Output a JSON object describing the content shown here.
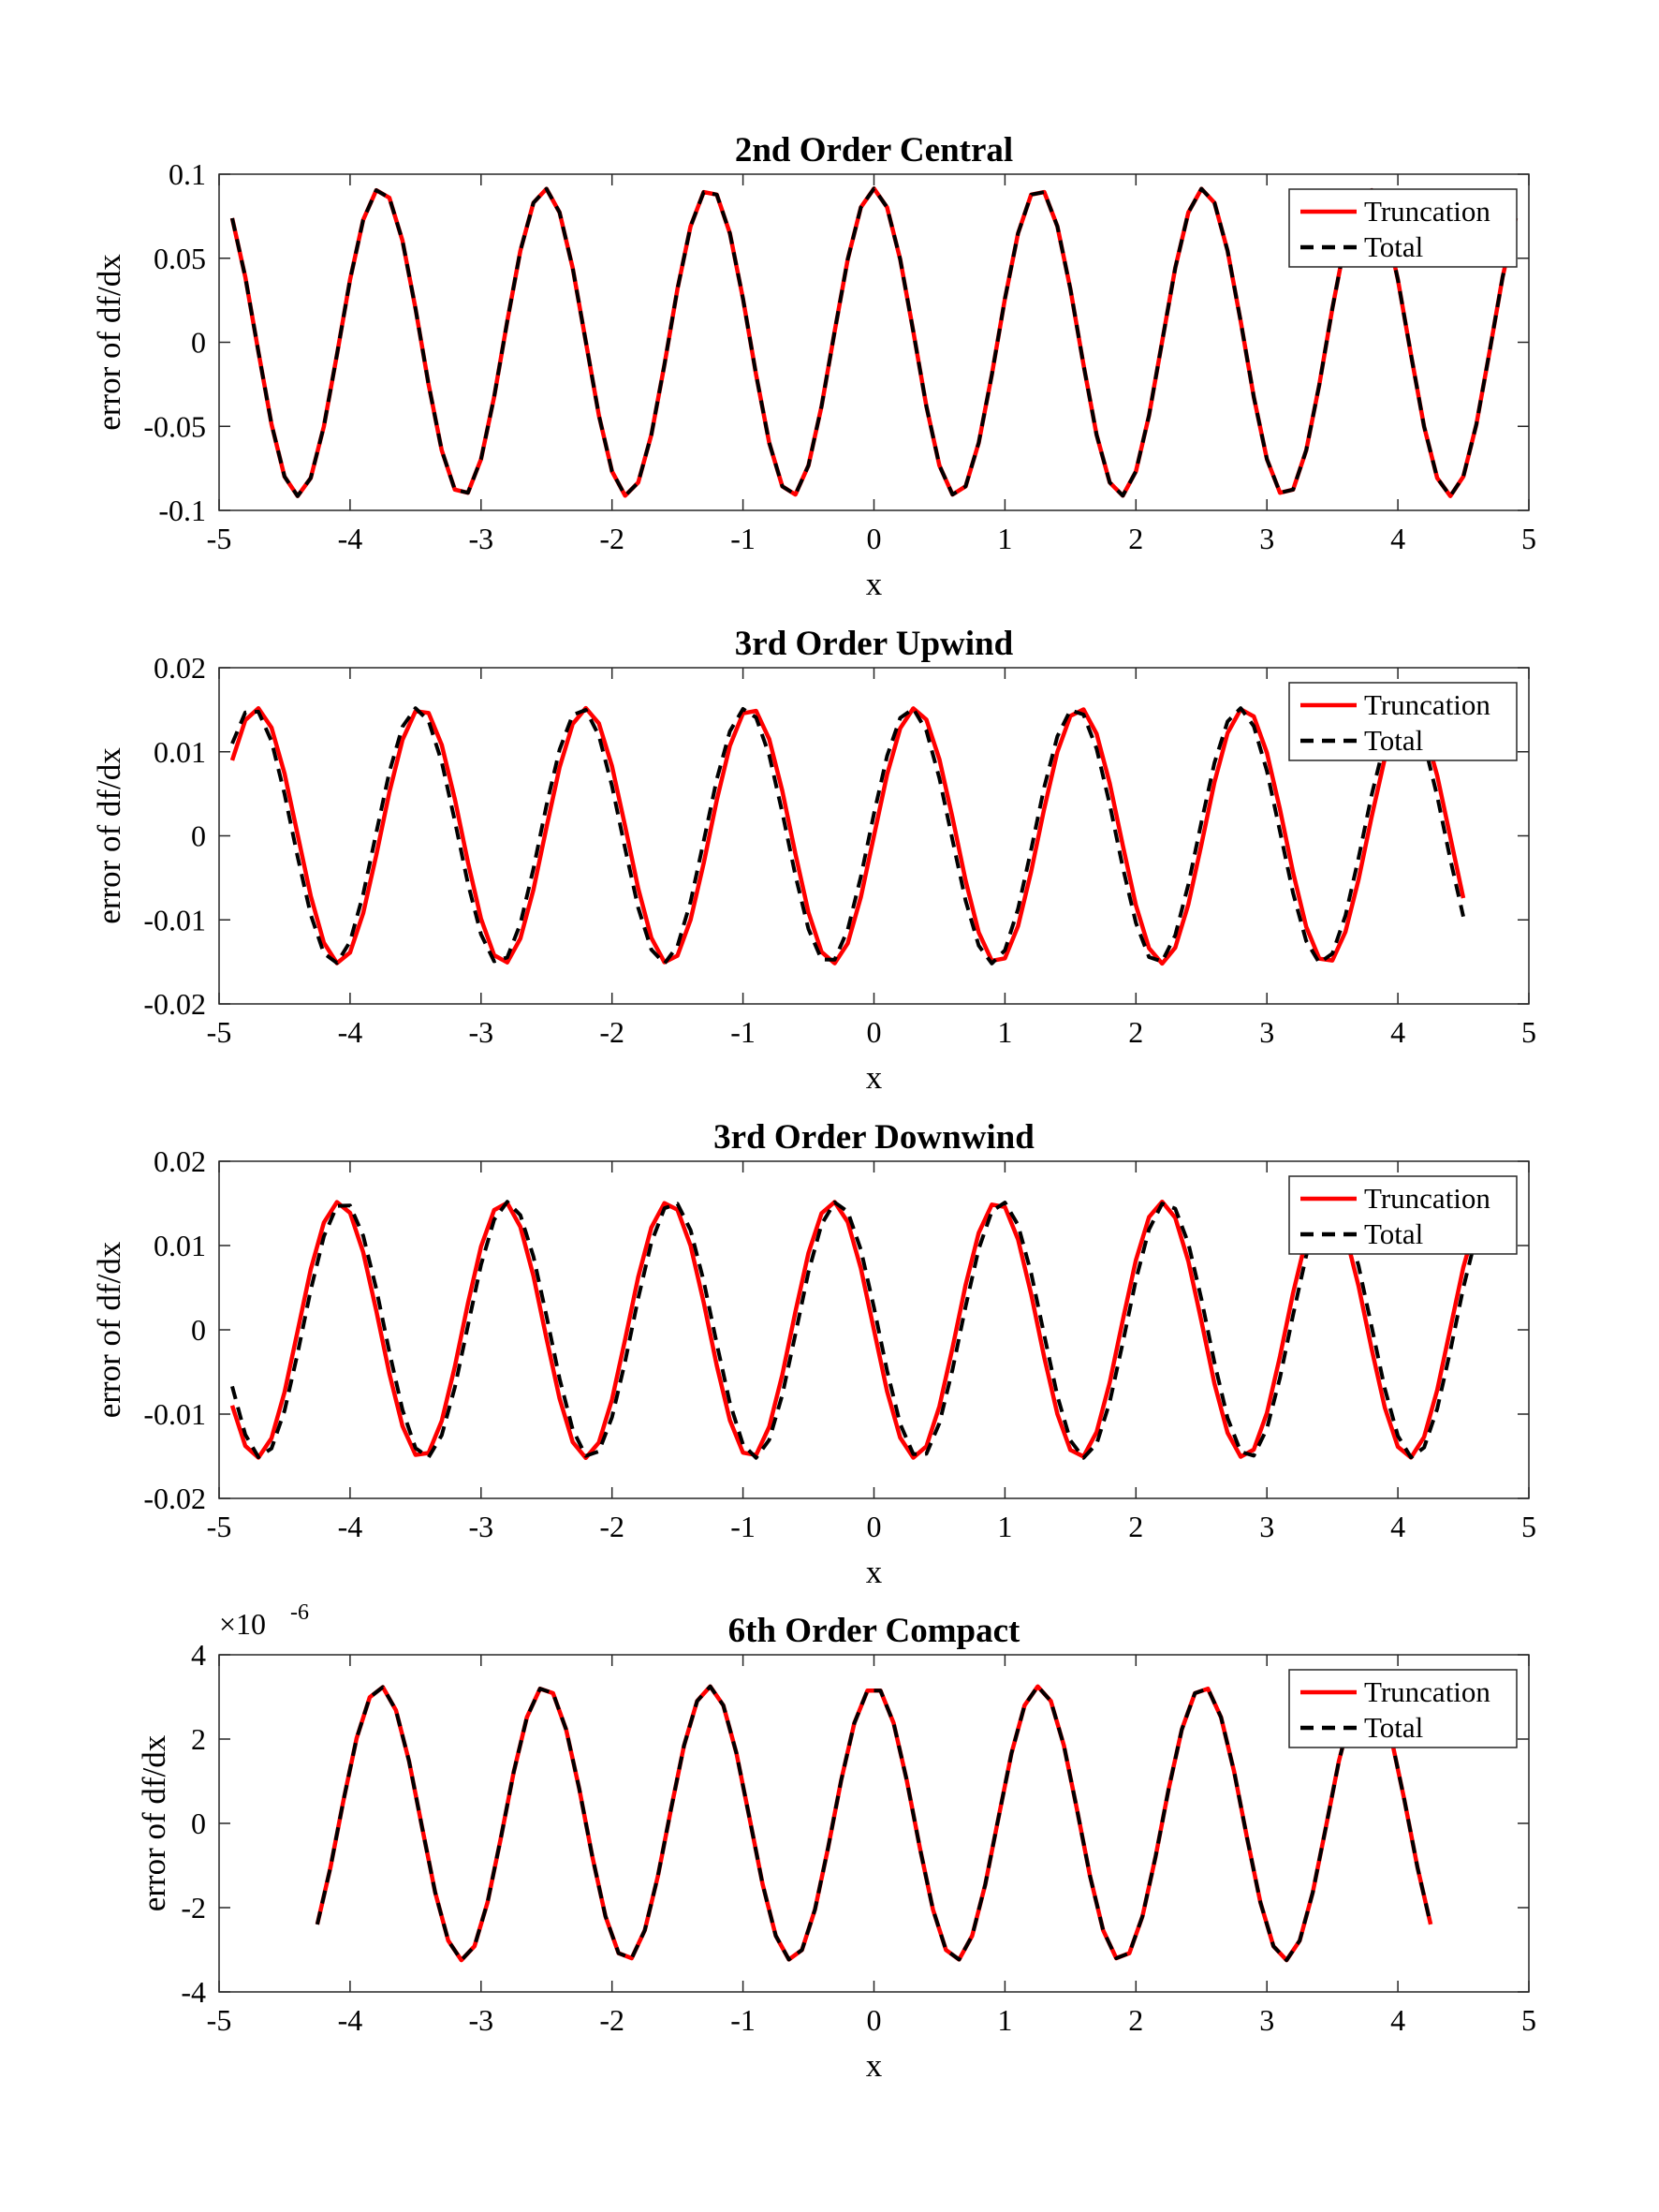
{
  "chart_data": [
    {
      "type": "line",
      "title": "2nd Order Central",
      "xlabel": "x",
      "ylabel": "error of df/dx",
      "xlim": [
        -5,
        5
      ],
      "ylim": [
        -0.1,
        0.1
      ],
      "xticks": [
        "-5",
        "-4",
        "-3",
        "-2",
        "-1",
        "0",
        "1",
        "2",
        "3",
        "4",
        "5"
      ],
      "yticks": [
        "-0.1",
        "-0.05",
        "0",
        "0.05",
        "0.1"
      ],
      "ytick_values": [
        -0.1,
        -0.05,
        0,
        0.05,
        0.1
      ],
      "exponent_label": "",
      "legend": "top-right",
      "grid": false,
      "series": [
        {
          "name": "Truncation",
          "color": "#ff0000",
          "style": "solid",
          "amplitude": 0.0915,
          "period": 1.2566,
          "phase": 0.0,
          "x_range": [
            -4.9,
            4.9
          ]
        },
        {
          "name": "Total",
          "color": "#000000",
          "style": "dashed",
          "amplitude": 0.0915,
          "period": 1.2566,
          "phase": 0.0,
          "x_range": [
            -4.9,
            4.9
          ]
        }
      ]
    },
    {
      "type": "line",
      "title": "3rd Order Upwind",
      "xlabel": "x",
      "ylabel": "error of df/dx",
      "xlim": [
        -5,
        5
      ],
      "ylim": [
        -0.02,
        0.02
      ],
      "xticks": [
        "-5",
        "-4",
        "-3",
        "-2",
        "-1",
        "0",
        "1",
        "2",
        "3",
        "4",
        "5"
      ],
      "yticks": [
        "-0.02",
        "-0.01",
        "0",
        "0.01",
        "0.02"
      ],
      "ytick_values": [
        -0.02,
        -0.01,
        0,
        0.01,
        0.02
      ],
      "exponent_label": "",
      "legend": "top-right",
      "grid": false,
      "series": [
        {
          "name": "Truncation",
          "color": "#ff0000",
          "style": "solid",
          "amplitude": 0.0152,
          "period": 1.2566,
          "phase": -0.3142,
          "x_range": [
            -4.9,
            4.5
          ]
        },
        {
          "name": "Total",
          "color": "#000000",
          "style": "dashed",
          "amplitude": 0.0152,
          "period": 1.2566,
          "phase": -0.2792,
          "x_range": [
            -4.9,
            4.5
          ]
        }
      ]
    },
    {
      "type": "line",
      "title": "3rd Order Downwind",
      "xlabel": "x",
      "ylabel": "error of df/dx",
      "xlim": [
        -5,
        5
      ],
      "ylim": [
        -0.02,
        0.02
      ],
      "xticks": [
        "-5",
        "-4",
        "-3",
        "-2",
        "-1",
        "0",
        "1",
        "2",
        "3",
        "4",
        "5"
      ],
      "yticks": [
        "-0.02",
        "-0.01",
        "0",
        "0.01",
        "0.02"
      ],
      "ytick_values": [
        -0.02,
        -0.01,
        0,
        0.01,
        0.02
      ],
      "exponent_label": "",
      "legend": "top-right",
      "grid": false,
      "series": [
        {
          "name": "Truncation",
          "color": "#ff0000",
          "style": "solid",
          "amplitude": 0.0152,
          "period": 1.2566,
          "phase": 0.3142,
          "x_range": [
            -4.9,
            4.85
          ]
        },
        {
          "name": "Total",
          "color": "#000000",
          "style": "dashed",
          "amplitude": 0.0152,
          "period": 1.2566,
          "phase": 0.2792,
          "x_range": [
            -4.9,
            4.85
          ]
        }
      ]
    },
    {
      "type": "line",
      "title": "6th Order Compact",
      "xlabel": "x",
      "ylabel": "error of df/dx",
      "xlim": [
        -5,
        5
      ],
      "ylim": [
        -4,
        4
      ],
      "xticks": [
        "-5",
        "-4",
        "-3",
        "-2",
        "-1",
        "0",
        "1",
        "2",
        "3",
        "4",
        "5"
      ],
      "yticks": [
        "-4",
        "-2",
        "0",
        "2",
        "4"
      ],
      "ytick_values": [
        -4,
        -2,
        0,
        2,
        4
      ],
      "exponent_label": "×10",
      "exponent_power": "-6",
      "legend": "top-right",
      "grid": false,
      "series": [
        {
          "name": "Truncation",
          "color": "#ff0000",
          "style": "solid",
          "amplitude": 3.25,
          "period": 1.2566,
          "phase": 0.0,
          "x_range": [
            -4.25,
            4.25
          ]
        },
        {
          "name": "Total",
          "color": "#000000",
          "style": "dashed",
          "amplitude": 3.25,
          "period": 1.2566,
          "phase": 0.0,
          "x_range": [
            -4.25,
            4.25
          ]
        }
      ]
    }
  ]
}
